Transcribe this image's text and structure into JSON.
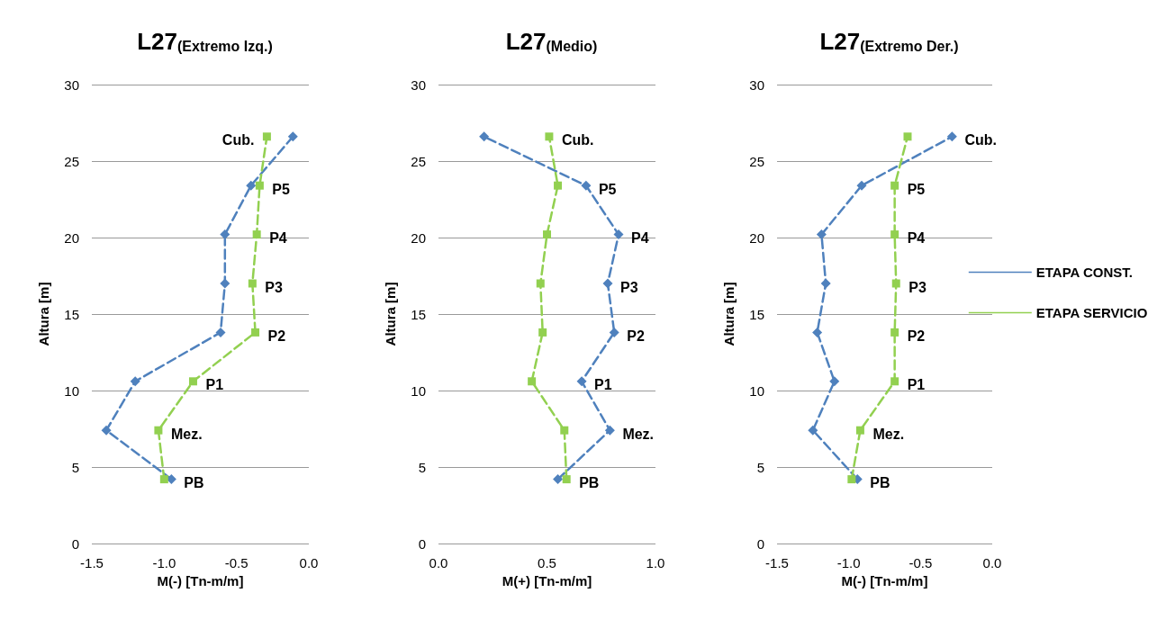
{
  "chart_data": [
    {
      "type": "line",
      "title": "L27",
      "subtitle": "(Extremo Izq.)",
      "xlabel": "M(-) [Tn-m/m]",
      "ylabel": "Altura [m]",
      "xlim": [
        -1.5,
        0
      ],
      "xticks": [
        -1.5,
        {
          "value": -1,
          "label": "-1.0"
        },
        -0.5,
        {
          "value": 0,
          "label": "0.0"
        }
      ],
      "ylim": [
        0,
        30
      ],
      "yticks": [
        0,
        5,
        10,
        15,
        20,
        25,
        30
      ],
      "grid": "y",
      "legend": false,
      "line_style": "dashed",
      "series": [
        {
          "color": "#4f81bd",
          "marker": "diamond",
          "x": [
            -0.95,
            -1.4,
            -1.2,
            -0.61,
            -0.58,
            -0.58,
            -0.4,
            -0.11
          ],
          "values": [
            4.2,
            7.4,
            10.6,
            13.8,
            17.0,
            20.2,
            23.4,
            26.6
          ]
        },
        {
          "color": "#92d050",
          "marker": "square",
          "x": [
            -1.0,
            -1.04,
            -0.8,
            -0.37,
            -0.39,
            -0.36,
            -0.34,
            -0.29
          ],
          "values": [
            4.2,
            7.4,
            10.6,
            13.8,
            17.0,
            20.2,
            23.4,
            26.6
          ]
        }
      ],
      "annotations": [
        {
          "text": "Cub.",
          "x": -0.29,
          "y": 26.6
        },
        {
          "text": "P5",
          "x": -0.34,
          "y": 23.4
        },
        {
          "text": "P4",
          "x": -0.36,
          "y": 20.2
        },
        {
          "text": "P3",
          "x": -0.39,
          "y": 17.0
        },
        {
          "text": "P2",
          "x": -0.37,
          "y": 13.8
        },
        {
          "text": "P1",
          "x": -0.8,
          "y": 10.6
        },
        {
          "text": "Mez.",
          "x": -1.04,
          "y": 7.4
        },
        {
          "text": "PB",
          "x": -0.95,
          "y": 4.2
        }
      ]
    },
    {
      "type": "line",
      "title": "L27",
      "subtitle": "(Medio)",
      "xlabel": "M(+) [Tn-m/m]",
      "ylabel": "Altura [m]",
      "xlim": [
        0,
        1
      ],
      "xticks": [
        {
          "value": 0,
          "label": "0.0"
        },
        0.5,
        {
          "value": 1,
          "label": "1.0"
        }
      ],
      "ylim": [
        0,
        30
      ],
      "yticks": [
        0,
        5,
        10,
        15,
        20,
        25,
        30
      ],
      "grid": "y",
      "legend": false,
      "line_style": "dashed",
      "series": [
        {
          "color": "#4f81bd",
          "marker": "diamond",
          "x": [
            0.55,
            0.79,
            0.66,
            0.81,
            0.78,
            0.83,
            0.68,
            0.21
          ],
          "values": [
            4.2,
            7.4,
            10.6,
            13.8,
            17.0,
            20.2,
            23.4,
            26.6
          ]
        },
        {
          "color": "#92d050",
          "marker": "square",
          "x": [
            0.59,
            0.58,
            0.43,
            0.48,
            0.47,
            0.5,
            0.55,
            0.51
          ],
          "values": [
            4.2,
            7.4,
            10.6,
            13.8,
            17.0,
            20.2,
            23.4,
            26.6
          ]
        }
      ],
      "annotations": [
        {
          "text": "Cub.",
          "x": 0.51,
          "y": 26.6
        },
        {
          "text": "P5",
          "x": 0.68,
          "y": 23.4
        },
        {
          "text": "P4",
          "x": 0.83,
          "y": 20.2
        },
        {
          "text": "P3",
          "x": 0.78,
          "y": 17.0
        },
        {
          "text": "P2",
          "x": 0.81,
          "y": 13.8
        },
        {
          "text": "P1",
          "x": 0.66,
          "y": 10.6
        },
        {
          "text": "Mez.",
          "x": 0.79,
          "y": 7.4
        },
        {
          "text": "PB",
          "x": 0.59,
          "y": 4.2
        }
      ]
    },
    {
      "type": "line",
      "title": "L27",
      "subtitle": "(Extremo Der.)",
      "xlabel": "M(-) [Tn-m/m]",
      "ylabel": "Altura [m]",
      "xlim": [
        -1.5,
        0
      ],
      "xticks": [
        -1.5,
        {
          "value": -1,
          "label": "-1.0"
        },
        -0.5,
        {
          "value": 0,
          "label": "0.0"
        }
      ],
      "ylim": [
        0,
        30
      ],
      "yticks": [
        0,
        5,
        10,
        15,
        20,
        25,
        30
      ],
      "grid": "y",
      "legend": "right",
      "line_style": "dashed",
      "series": [
        {
          "name": "ETAPA CONST.",
          "color": "#4f81bd",
          "marker": "diamond",
          "x": [
            -0.94,
            -1.25,
            -1.1,
            -1.22,
            -1.16,
            -1.19,
            -0.91,
            -0.28
          ],
          "values": [
            4.2,
            7.4,
            10.6,
            13.8,
            17.0,
            20.2,
            23.4,
            26.6
          ]
        },
        {
          "name": "ETAPA SERVICIO",
          "color": "#92d050",
          "marker": "square",
          "x": [
            -0.98,
            -0.92,
            -0.68,
            -0.68,
            -0.67,
            -0.68,
            -0.68,
            -0.59
          ],
          "values": [
            4.2,
            7.4,
            10.6,
            13.8,
            17.0,
            20.2,
            23.4,
            26.6
          ]
        }
      ],
      "annotations": [
        {
          "text": "Cub.",
          "x": -0.28,
          "y": 26.6
        },
        {
          "text": "P5",
          "x": -0.68,
          "y": 23.4
        },
        {
          "text": "P4",
          "x": -0.68,
          "y": 20.2
        },
        {
          "text": "P3",
          "x": -0.67,
          "y": 17.0
        },
        {
          "text": "P2",
          "x": -0.68,
          "y": 13.8
        },
        {
          "text": "P1",
          "x": -0.68,
          "y": 10.6
        },
        {
          "text": "Mez.",
          "x": -0.92,
          "y": 7.4
        },
        {
          "text": "PB",
          "x": -0.94,
          "y": 4.2
        }
      ]
    }
  ]
}
